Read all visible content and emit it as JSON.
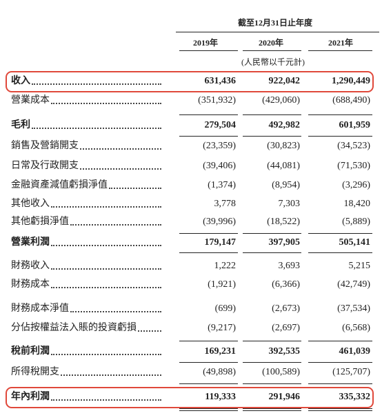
{
  "table": {
    "period_header": "截至12月31日止年度",
    "columns": [
      "2019年",
      "2020年",
      "2021年"
    ],
    "unit": "(人民幣以千元計)",
    "rows": [
      [
        "收入",
        "631,436",
        "922,042",
        "1,290,449"
      ],
      [
        "營業成本",
        "(351,932)",
        "(429,060)",
        "(688,490)"
      ],
      [
        "毛利",
        "279,504",
        "492,982",
        "601,959"
      ],
      [
        "銷售及營銷開支",
        "(23,359)",
        "(30,823)",
        "(34,523)"
      ],
      [
        "日常及行政開支",
        "(39,406)",
        "(44,081)",
        "(71,530)"
      ],
      [
        "金融資產減值虧損淨值",
        "(1,374)",
        "(8,954)",
        "(3,296)"
      ],
      [
        "其他收入",
        "3,778",
        "7,303",
        "18,420"
      ],
      [
        "其他虧損淨值",
        "(39,996)",
        "(18,522)",
        "(5,889)"
      ],
      [
        "營業利潤",
        "179,147",
        "397,905",
        "505,141"
      ],
      [
        "財務收入",
        "1,222",
        "3,693",
        "5,215"
      ],
      [
        "財務成本",
        "(1,921)",
        "(6,366)",
        "(42,749)"
      ],
      [
        "財務成本淨值",
        "(699)",
        "(2,673)",
        "(37,534)"
      ],
      [
        "分佔按權益法入賬的投資虧損",
        "(9,217)",
        "(2,697)",
        "(6,568)"
      ],
      [
        "稅前利潤",
        "169,231",
        "392,535",
        "461,039"
      ],
      [
        "所得稅開支",
        "(49,898)",
        "(100,589)",
        "(125,707)"
      ],
      [
        "年內利潤",
        "119,333",
        "291,946",
        "335,332"
      ]
    ]
  }
}
